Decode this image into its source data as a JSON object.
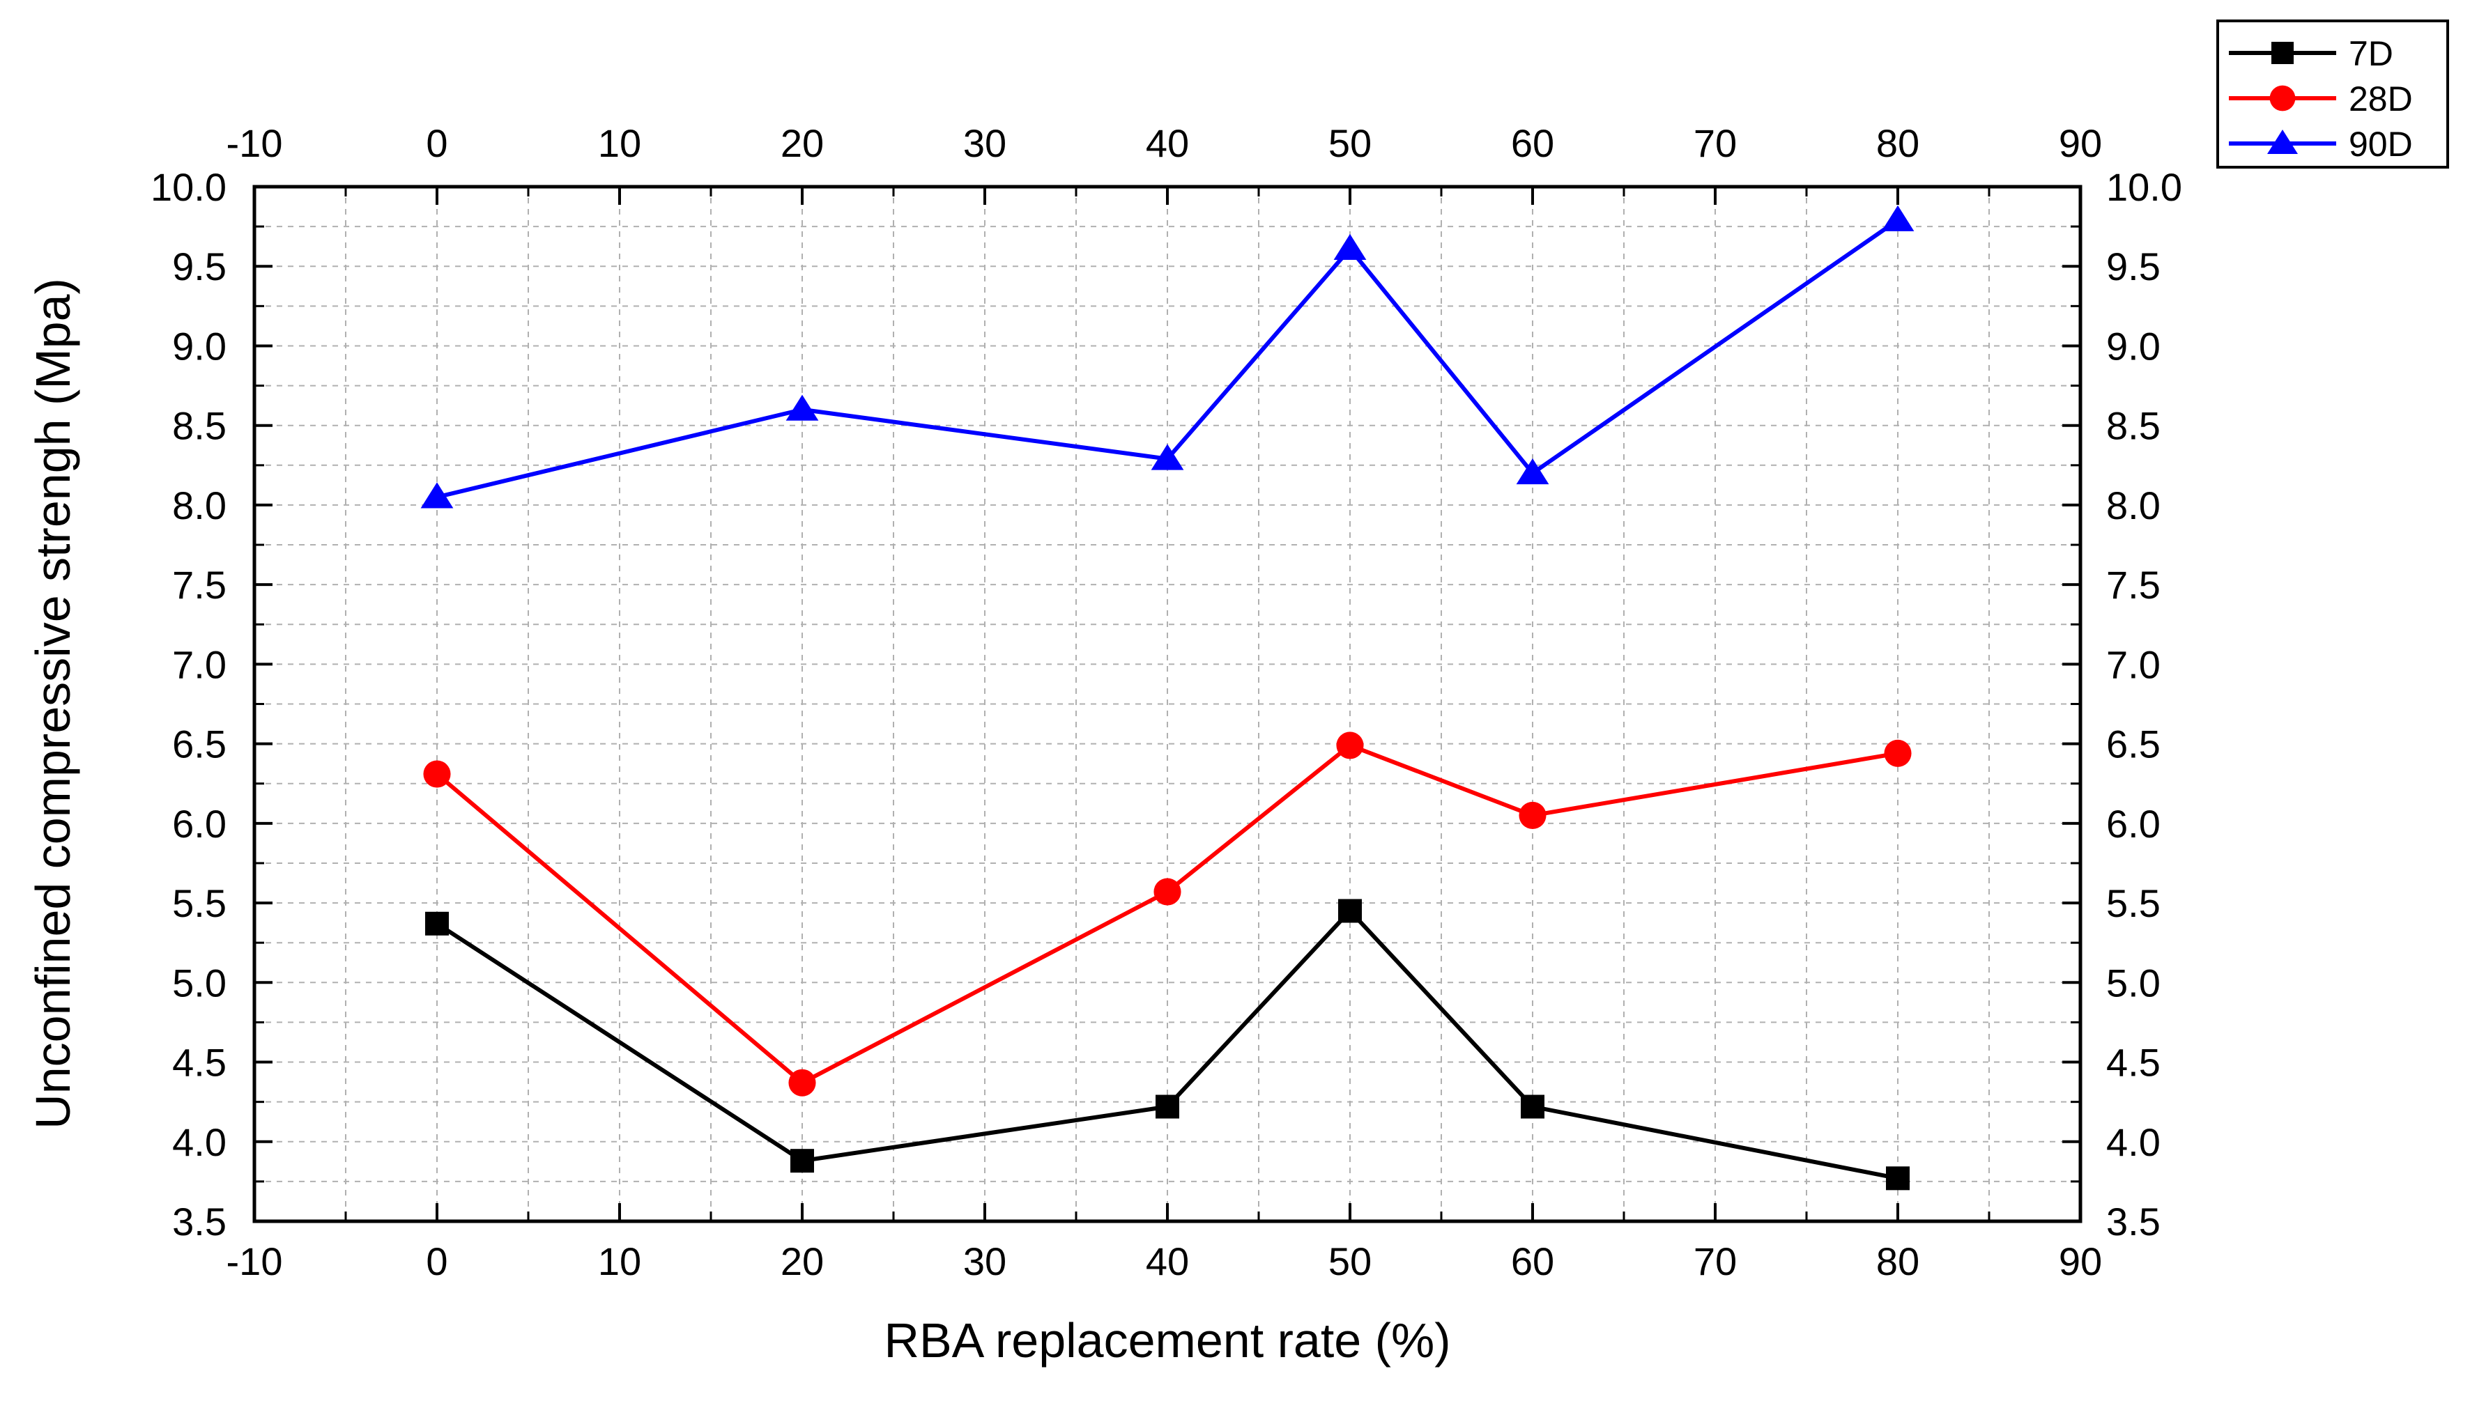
{
  "chart_data": {
    "type": "line",
    "title": "",
    "xlabel": "RBA replacement rate (%)",
    "ylabel": "Unconfined compressive strengh (Mpa)",
    "xlim": [
      -10,
      90
    ],
    "ylim": [
      3.5,
      10.0
    ],
    "x_ticks": [
      "-10",
      "0",
      "10",
      "20",
      "30",
      "40",
      "50",
      "60",
      "70",
      "80",
      "90"
    ],
    "y_ticks": [
      "3.5",
      "4.0",
      "4.5",
      "5.0",
      "5.5",
      "6.0",
      "6.5",
      "7.0",
      "7.5",
      "8.0",
      "8.5",
      "9.0",
      "9.5",
      "10.0"
    ],
    "x_tick_values": [
      -10,
      0,
      10,
      20,
      30,
      40,
      50,
      60,
      70,
      80,
      90
    ],
    "y_tick_values": [
      3.5,
      4.0,
      4.5,
      5.0,
      5.5,
      6.0,
      6.5,
      7.0,
      7.5,
      8.0,
      8.5,
      9.0,
      9.5,
      10.0
    ],
    "grid": true,
    "mirrored_axes": true,
    "legend_position": "top-right, outside plot",
    "x": [
      0,
      20,
      40,
      50,
      60,
      80
    ],
    "series": [
      {
        "name": "7D",
        "color": "#000000",
        "marker": "square",
        "values": [
          5.37,
          3.88,
          4.22,
          5.45,
          4.22,
          3.77
        ]
      },
      {
        "name": "28D",
        "color": "#ff0000",
        "marker": "circle",
        "values": [
          6.31,
          4.37,
          5.57,
          6.49,
          6.05,
          6.44
        ]
      },
      {
        "name": "90D",
        "color": "#0000ff",
        "marker": "triangle",
        "values": [
          8.05,
          8.6,
          8.29,
          9.61,
          8.2,
          9.79
        ]
      }
    ]
  }
}
